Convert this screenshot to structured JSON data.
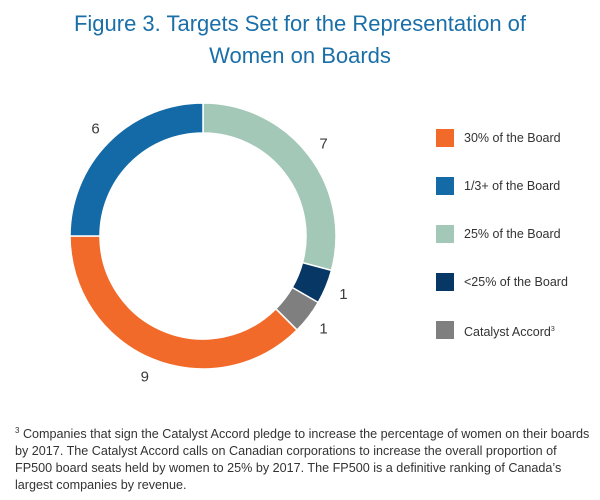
{
  "title": {
    "line1": "Figure 3. Targets Set for the Representation of",
    "line2": "Women on Boards"
  },
  "chart_data": {
    "type": "pie",
    "donut": true,
    "slices": [
      {
        "label": "30% of the Board",
        "value": 9,
        "color": "#f26a2a"
      },
      {
        "label": "1/3+ of the Board",
        "value": 6,
        "color": "#146aa6"
      },
      {
        "label": "25% of the Board",
        "value": 7,
        "color": "#a3c8b8"
      },
      {
        "label": "<25% of the Board",
        "value": 1,
        "color": "#073764"
      },
      {
        "label": "Catalyst Accord",
        "label_sup": "3",
        "value": 1,
        "color": "#7f7f7f"
      }
    ],
    "legend_position": "right"
  },
  "footnote": {
    "marker": "3",
    "text": " Companies that sign the Catalyst Accord pledge to increase the percentage of women on their boards by 2017. The Catalyst Accord calls on Canadian corporations to increase the overall proportion of FP500 board seats held by women to 25% by 2017. The FP500 is a definitive ranking of Canada’s largest companies by revenue."
  }
}
